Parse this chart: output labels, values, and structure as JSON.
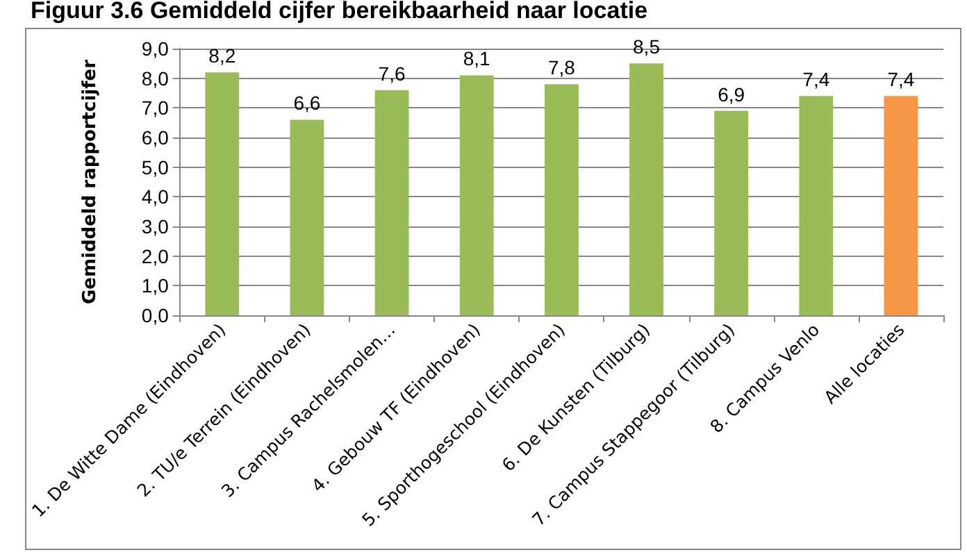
{
  "chart_data": {
    "type": "bar",
    "title": "Figuur 3.6 Gemiddeld cijfer bereikbaarheid naar locatie",
    "ylabel": "Gemiddeld rapportcijfer",
    "categories": [
      "1. De Witte Dame (Eindhoven)",
      "2. TU/e Terrein (Eindhoven)",
      "3. Campus Rachelsmolen…",
      "4. Gebouw TF (Eindhoven)",
      "5. Sporthogeschool (Eindhoven)",
      "6. De Kunsten (Tilburg)",
      "7. Campus Stappegoor (Tilburg)",
      "8. Campus Venlo",
      "Alle locaties"
    ],
    "values": [
      8.2,
      6.6,
      7.6,
      8.1,
      7.8,
      8.5,
      6.9,
      7.4,
      7.4
    ],
    "value_labels": [
      "8,2",
      "6,6",
      "7,6",
      "8,1",
      "7,8",
      "8,5",
      "6,9",
      "7,4",
      "7,4"
    ],
    "colors": [
      "#9bbb59",
      "#9bbb59",
      "#9bbb59",
      "#9bbb59",
      "#9bbb59",
      "#9bbb59",
      "#9bbb59",
      "#9bbb59",
      "#f79646"
    ],
    "ylim": [
      0,
      9
    ],
    "yticks": [
      {
        "value": 0,
        "label": "0,0"
      },
      {
        "value": 1,
        "label": "1,0"
      },
      {
        "value": 2,
        "label": "2,0"
      },
      {
        "value": 3,
        "label": "3,0"
      },
      {
        "value": 4,
        "label": "4,0"
      },
      {
        "value": 5,
        "label": "5,0"
      },
      {
        "value": 6,
        "label": "6,0"
      },
      {
        "value": 7,
        "label": "7,0"
      },
      {
        "value": 8,
        "label": "8,0"
      },
      {
        "value": 9,
        "label": "9,0"
      }
    ],
    "grid": "y"
  }
}
